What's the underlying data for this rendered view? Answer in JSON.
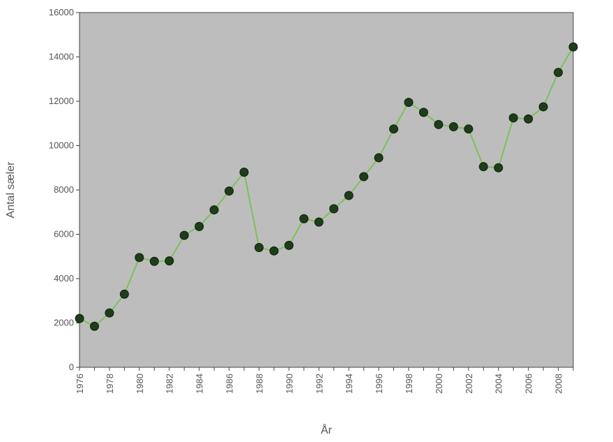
{
  "chart_data": {
    "type": "line",
    "xlabel": "År",
    "ylabel": "Antal sæler",
    "ylim": [
      0,
      16000
    ],
    "xlim": [
      1976,
      2009
    ],
    "yticks": [
      0,
      2000,
      4000,
      6000,
      8000,
      10000,
      12000,
      14000,
      16000
    ],
    "xticks": [
      1976,
      1978,
      1980,
      1982,
      1984,
      1986,
      1988,
      1990,
      1992,
      1994,
      1996,
      1998,
      2000,
      2002,
      2004,
      2006,
      2008
    ],
    "grid": false,
    "legend": "none",
    "series": [
      {
        "x": [
          1976,
          1977,
          1978,
          1979,
          1980,
          1981,
          1982,
          1983,
          1984,
          1985,
          1986,
          1987,
          1988,
          1989,
          1990,
          1991,
          1992,
          1993,
          1994,
          1995,
          1996,
          1997,
          1998,
          1999,
          2000,
          2001,
          2002,
          2003,
          2004,
          2005,
          2006,
          2007,
          2008,
          2009
        ],
        "y": [
          2200,
          1850,
          2450,
          3300,
          4950,
          4780,
          4800,
          5950,
          6350,
          7100,
          7950,
          8800,
          5400,
          5250,
          5500,
          6700,
          6550,
          7150,
          7750,
          8600,
          9450,
          10750,
          11950,
          11500,
          10950,
          10850,
          10750,
          9050,
          9000,
          11250,
          11200,
          11750,
          13300,
          14450
        ]
      }
    ],
    "colors": {
      "plot_background": "#bdbdbd",
      "line": "#7cc05a",
      "marker": "#1e3d1a",
      "axis": "#444444"
    }
  }
}
